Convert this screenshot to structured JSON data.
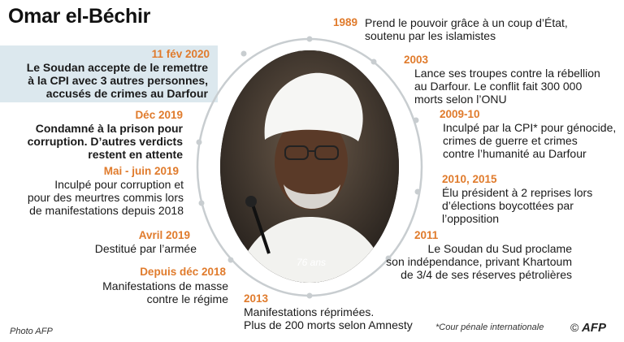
{
  "title": "Omar el-Béchir",
  "highlight": {
    "date": "11 fév 2020",
    "lines": [
      "Le Soudan accepte de le remettre",
      "à la CPI avec 3 autres personnes,",
      "accusés de crimes au Darfour"
    ]
  },
  "age_label": "76 ans",
  "events_right": [
    {
      "date": "1989",
      "lines": [
        "Prend le pouvoir grâce à un coup d’État,",
        "soutenu par les islamistes"
      ]
    },
    {
      "date": "2003",
      "lines": [
        "Lance ses troupes contre la rébellion",
        "au Darfour. Le conflit fait 300 000",
        "morts selon l’ONU"
      ]
    },
    {
      "date": "2009-10",
      "lines": [
        "Inculpé par la CPI* pour génocide,",
        "crimes de guerre et crimes",
        "contre l’humanité au Darfour"
      ]
    },
    {
      "date": "2010, 2015",
      "lines": [
        "Élu président à 2 reprises lors",
        "d’élections boycottées par",
        "l’opposition"
      ]
    },
    {
      "date": "2011",
      "lines": [
        "Le Soudan du Sud proclame",
        "son indépendance, privant Khartoum",
        "de 3/4 de ses réserves pétrolières"
      ]
    },
    {
      "date": "2013",
      "lines": [
        "Manifestations réprimées.",
        "Plus de 200 morts selon Amnesty"
      ]
    }
  ],
  "events_left": [
    {
      "date": "Déc 2019",
      "lines": [
        "Condamné à la prison pour",
        "corruption.  D’autres verdicts",
        "restent en attente"
      ]
    },
    {
      "date": "Mai - juin 2019",
      "lines": [
        "Inculpé pour corruption et",
        "pour des meurtres commis lors",
        "de manifestations depuis 2018"
      ]
    },
    {
      "date": "Avril 2019",
      "lines": [
        "Destitué par l’armée"
      ]
    },
    {
      "date": "Depuis déc 2018",
      "lines": [
        "Manifestations de masse",
        "contre le régime"
      ]
    }
  ],
  "footer": {
    "credit": "Photo AFP",
    "note": "*Cour pénale internationale",
    "copyright_symbol": "©",
    "logo": "AFP"
  },
  "colors": {
    "date": "#e07b2c",
    "highlight_bg": "#dce8ee",
    "ring": "#c8cdd0"
  }
}
